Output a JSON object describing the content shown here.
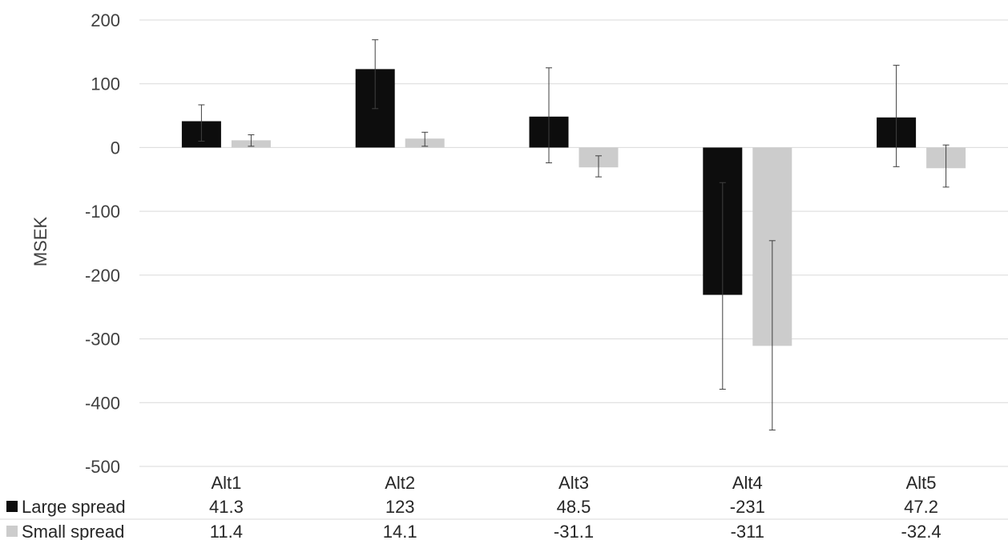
{
  "chart_data": {
    "type": "bar",
    "title": "",
    "xlabel": "",
    "ylabel": "MSEK",
    "ylim": [
      -500,
      200
    ],
    "yticks": [
      200,
      100,
      0,
      -100,
      -200,
      -300,
      -400,
      -500
    ],
    "grid": true,
    "legend": "data-table-left",
    "categories": [
      "Alt1",
      "Alt2",
      "Alt3",
      "Alt4",
      "Alt5"
    ],
    "series": [
      {
        "name": "Large spread",
        "color": "#0d0d0d",
        "values": [
          41.3,
          123,
          48.5,
          -231,
          47.2
        ],
        "labels": [
          "41.3",
          "123",
          "48.5",
          "-231",
          "47.2"
        ],
        "error_low": [
          10,
          61,
          -24,
          -379,
          -30
        ],
        "error_high": [
          67,
          169,
          125,
          -55,
          129
        ]
      },
      {
        "name": "Small spread",
        "color": "#cccccc",
        "values": [
          11.4,
          14.1,
          -31.1,
          -311,
          -32.4
        ],
        "labels": [
          "11.4",
          "14.1",
          "-31.1",
          "-311",
          "-32.4"
        ],
        "error_low": [
          2,
          2,
          -46,
          -443,
          -62
        ],
        "error_high": [
          20,
          24,
          -13,
          -146,
          4
        ]
      }
    ]
  }
}
